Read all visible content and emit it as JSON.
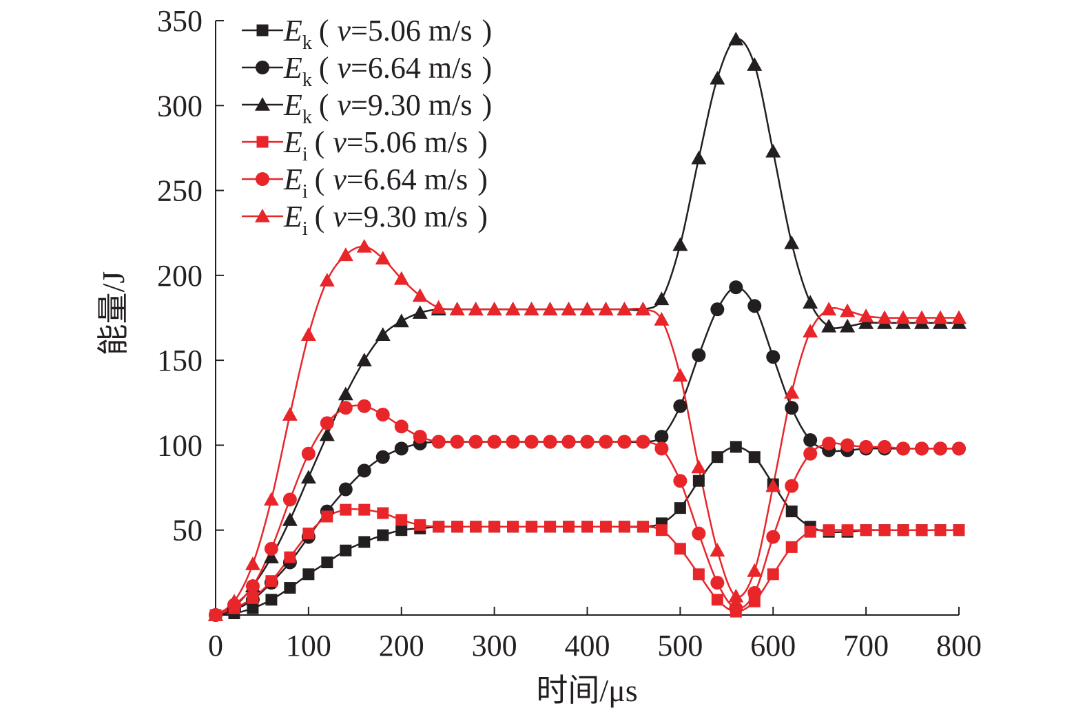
{
  "chart_data": {
    "type": "line",
    "xlabel": "时间/μs",
    "ylabel": "能量/J",
    "xlim": [
      0,
      800
    ],
    "ylim": [
      0,
      350
    ],
    "x_ticks": [
      0,
      100,
      200,
      300,
      400,
      500,
      600,
      700,
      800
    ],
    "y_ticks": [
      50,
      100,
      150,
      200,
      250,
      300,
      350
    ],
    "grid": false,
    "legend_position": "top-left",
    "x": [
      0,
      20,
      40,
      60,
      80,
      100,
      120,
      140,
      160,
      180,
      200,
      220,
      240,
      260,
      280,
      300,
      320,
      340,
      360,
      380,
      400,
      420,
      440,
      460,
      480,
      500,
      520,
      540,
      560,
      580,
      600,
      620,
      640,
      660,
      680,
      700,
      720,
      740,
      760,
      780,
      800
    ],
    "series": [
      {
        "label_symbol": "E",
        "label_sub": "k",
        "label_speed": "v",
        "label_value": "=5.06 m/s",
        "color": "#231f20",
        "marker": "square",
        "values": [
          0,
          1,
          4,
          9,
          16,
          24,
          31,
          38,
          43,
          47,
          50,
          51,
          52,
          52,
          52,
          52,
          52,
          52,
          52,
          52,
          52,
          52,
          52,
          52,
          54,
          63,
          79,
          93,
          99,
          93,
          77,
          61,
          52,
          49,
          49,
          50,
          50,
          50,
          50,
          50,
          50
        ]
      },
      {
        "label_symbol": "E",
        "label_sub": "k",
        "label_speed": "v",
        "label_value": "=6.64 m/s",
        "color": "#231f20",
        "marker": "circle",
        "values": [
          0,
          3,
          9,
          19,
          31,
          46,
          61,
          74,
          85,
          93,
          98,
          101,
          102,
          102,
          102,
          102,
          102,
          102,
          102,
          102,
          102,
          102,
          102,
          102,
          105,
          123,
          153,
          180,
          193,
          182,
          152,
          122,
          103,
          97,
          97,
          98,
          98,
          98,
          98,
          98,
          98
        ]
      },
      {
        "label_symbol": "E",
        "label_sub": "k",
        "label_speed": "v",
        "label_value": "=9.30 m/s",
        "color": "#231f20",
        "marker": "triangle",
        "values": [
          0,
          5,
          17,
          34,
          56,
          81,
          106,
          130,
          150,
          165,
          173,
          178,
          180,
          180,
          180,
          180,
          180,
          180,
          180,
          180,
          180,
          180,
          180,
          180,
          186,
          218,
          269,
          316,
          339,
          324,
          273,
          219,
          184,
          170,
          170,
          172,
          172,
          172,
          172,
          172,
          172
        ]
      },
      {
        "label_symbol": "E",
        "label_sub": "i",
        "label_speed": "v",
        "label_value": "=5.06 m/s",
        "color": "#e8262a",
        "marker": "square",
        "values": [
          0,
          4,
          10,
          20,
          34,
          48,
          58,
          62,
          62,
          60,
          56,
          53,
          52,
          52,
          52,
          52,
          52,
          52,
          52,
          52,
          52,
          52,
          52,
          52,
          50,
          39,
          24,
          9,
          2,
          8,
          24,
          40,
          49,
          50,
          50,
          50,
          50,
          50,
          50,
          50,
          50
        ]
      },
      {
        "label_symbol": "E",
        "label_sub": "i",
        "label_speed": "v",
        "label_value": "=6.64 m/s",
        "color": "#e8262a",
        "marker": "circle",
        "values": [
          0,
          6,
          17,
          39,
          68,
          95,
          113,
          122,
          123,
          118,
          111,
          105,
          102,
          102,
          102,
          102,
          102,
          102,
          102,
          102,
          102,
          102,
          102,
          102,
          98,
          79,
          48,
          19,
          4,
          13,
          46,
          76,
          95,
          101,
          100,
          99,
          99,
          98,
          98,
          98,
          98
        ]
      },
      {
        "label_symbol": "E",
        "label_sub": "i",
        "label_speed": "v",
        "label_value": "=9.30 m/s",
        "color": "#e8262a",
        "marker": "triangle",
        "values": [
          0,
          8,
          30,
          68,
          118,
          165,
          197,
          212,
          217,
          210,
          198,
          188,
          181,
          180,
          180,
          180,
          180,
          180,
          180,
          180,
          180,
          180,
          180,
          180,
          174,
          141,
          87,
          38,
          11,
          26,
          76,
          131,
          167,
          180,
          179,
          176,
          175,
          175,
          175,
          175,
          175
        ]
      }
    ]
  }
}
